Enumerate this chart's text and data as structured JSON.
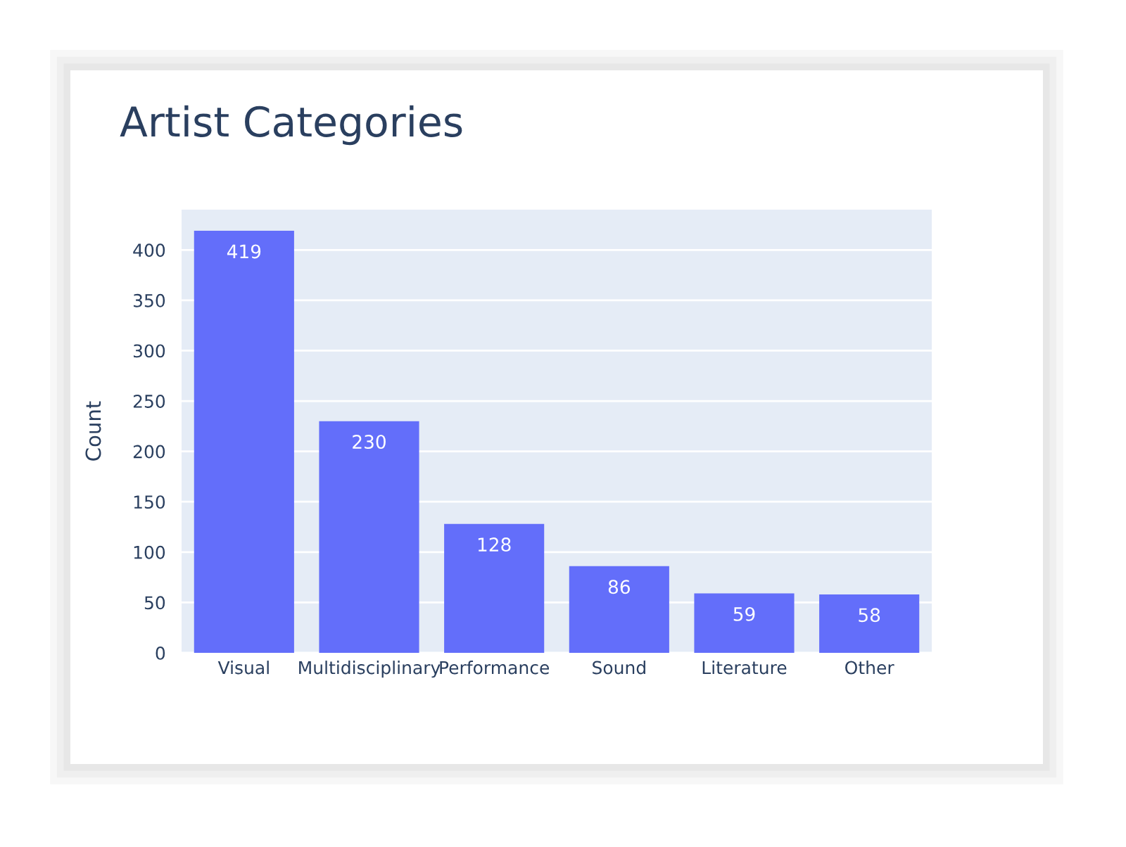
{
  "chart_data": {
    "type": "bar",
    "title": "Artist Categories",
    "ylabel": "Count",
    "categories": [
      "Visual",
      "Multidisciplinary",
      "Performance",
      "Sound",
      "Literature",
      "Other"
    ],
    "values": [
      419,
      230,
      128,
      86,
      59,
      58
    ],
    "color": "#636efa",
    "ylim": [
      0,
      440
    ],
    "yticks": [
      0,
      50,
      100,
      150,
      200,
      250,
      300,
      350,
      400
    ],
    "grid": "y",
    "data_labels": true
  }
}
